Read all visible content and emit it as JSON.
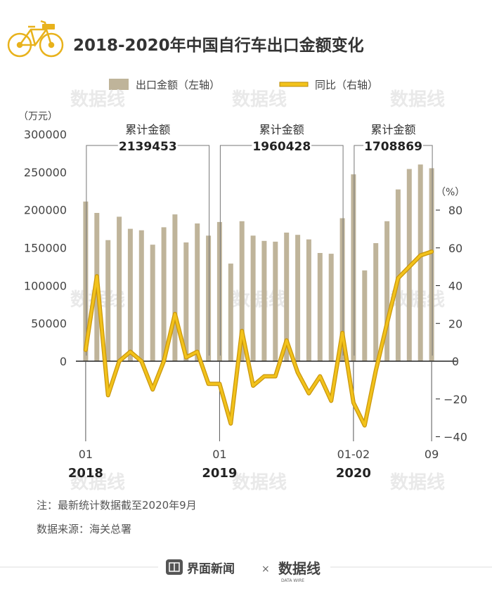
{
  "chart_data": {
    "type": "bar+line",
    "title": "2018-2020年中国自行车出口金额变化",
    "categories": [
      "2018-01",
      "2018-02",
      "2018-03",
      "2018-04",
      "2018-05",
      "2018-06",
      "2018-07",
      "2018-08",
      "2018-09",
      "2018-10",
      "2018-11",
      "2018-12",
      "2019-01",
      "2019-02",
      "2019-03",
      "2019-04",
      "2019-05",
      "2019-06",
      "2019-07",
      "2019-08",
      "2019-09",
      "2019-10",
      "2019-11",
      "2019-12",
      "2020-01-02",
      "2020-03",
      "2020-04",
      "2020-05",
      "2020-06",
      "2020-07",
      "2020-08",
      "2020-09"
    ],
    "series": [
      {
        "name": "出口金额（左轴）",
        "type": "bar",
        "axis": "left",
        "color": "#bfb49a",
        "values": [
          211000,
          196000,
          160000,
          191000,
          175000,
          173000,
          154000,
          177000,
          194000,
          157000,
          182000,
          166000,
          184000,
          129000,
          185000,
          166000,
          159000,
          158000,
          170000,
          167000,
          161000,
          143000,
          142000,
          189000,
          247000,
          120000,
          156000,
          185000,
          227000,
          254000,
          260000,
          255000
        ]
      },
      {
        "name": "同比（右轴）",
        "type": "line",
        "axis": "right",
        "color": "#f2c21b",
        "values": [
          6,
          45,
          -18,
          0,
          5,
          0,
          -15,
          0,
          25,
          2,
          5,
          -12,
          -12,
          -33,
          16,
          -13,
          -8,
          -8,
          11,
          -6,
          -17,
          -8,
          -21,
          15,
          -22,
          -34,
          -5,
          20,
          44,
          50,
          56,
          58
        ]
      }
    ],
    "y_left": {
      "label": "（万元）",
      "range": [
        0,
        300000
      ],
      "ticks": [
        0,
        50000,
        100000,
        150000,
        200000,
        250000,
        300000
      ]
    },
    "y_right": {
      "label": "（%）",
      "range": [
        -40,
        80
      ],
      "ticks": [
        -40,
        -20,
        0,
        20,
        40,
        60,
        80
      ]
    },
    "x_tick_labels": [
      {
        "index": 0,
        "month": "01",
        "year": "2018"
      },
      {
        "index": 12,
        "month": "01",
        "year": "2019"
      },
      {
        "index": 24,
        "month": "01-02",
        "year": "2020"
      },
      {
        "index": 31,
        "month": "09",
        "year": ""
      }
    ],
    "annotations": [
      {
        "label": "累计金额",
        "value": "2139453",
        "from_index": 0,
        "to_index": 11
      },
      {
        "label": "累计金额",
        "value": "1960428",
        "from_index": 12,
        "to_index": 23
      },
      {
        "label": "累计金额",
        "value": "1708869",
        "from_index": 24,
        "to_index": 31
      }
    ],
    "legend_position": "top"
  },
  "notes": {
    "note": "注：最新统计数据截至2020年9月",
    "source": "数据来源：海关总署"
  },
  "footer": {
    "brand": "界面新闻",
    "times": "×",
    "partner": "数据线",
    "partner_sub": "DATA WIRE"
  },
  "watermark": "数据线"
}
